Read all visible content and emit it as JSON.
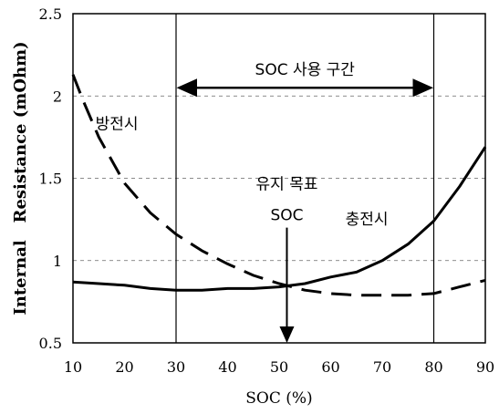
{
  "chart_data": {
    "type": "line",
    "title": "",
    "xlabel": "SOC (%)",
    "ylabel": "Internal   Resistance (mOhm)",
    "xlim": [
      10,
      90
    ],
    "ylim": [
      0.5,
      2.5
    ],
    "x_ticks": [
      "10",
      "20",
      "30",
      "40",
      "50",
      "60",
      "70",
      "80",
      "90"
    ],
    "y_ticks": [
      "0.5",
      "1",
      "1.5",
      "2",
      "2.5"
    ],
    "grid": "horizontal dashed",
    "series": [
      {
        "name": "방전시",
        "style": "dashed",
        "x": [
          10,
          12,
          15,
          20,
          25,
          30,
          35,
          40,
          45,
          50,
          55,
          60,
          65,
          70,
          75,
          80,
          85,
          90
        ],
        "y": [
          2.13,
          1.97,
          1.75,
          1.47,
          1.29,
          1.16,
          1.06,
          0.98,
          0.91,
          0.86,
          0.82,
          0.8,
          0.79,
          0.79,
          0.79,
          0.8,
          0.84,
          0.88
        ]
      },
      {
        "name": "충전시",
        "style": "solid",
        "x": [
          10,
          15,
          20,
          25,
          30,
          35,
          40,
          45,
          50,
          55,
          60,
          65,
          70,
          75,
          80,
          85,
          90
        ],
        "y": [
          0.87,
          0.86,
          0.85,
          0.83,
          0.82,
          0.82,
          0.83,
          0.83,
          0.84,
          0.86,
          0.9,
          0.93,
          1.0,
          1.1,
          1.24,
          1.45,
          1.69
        ]
      }
    ],
    "vertical_lines": [
      30,
      80
    ],
    "range_annotation": {
      "label": "SOC 사용 구간",
      "from": 30,
      "to": 80,
      "y": 2.05
    },
    "target_annotation": {
      "label_line1": "유지 목표",
      "label_line2": "SOC",
      "x": 51.5,
      "y_from": 1.2,
      "y_to": 0.5
    },
    "series_labels": [
      {
        "text": "방전시",
        "x": 18.5,
        "y": 1.8
      },
      {
        "text": "충전시",
        "x": 67,
        "y": 1.22
      }
    ]
  }
}
